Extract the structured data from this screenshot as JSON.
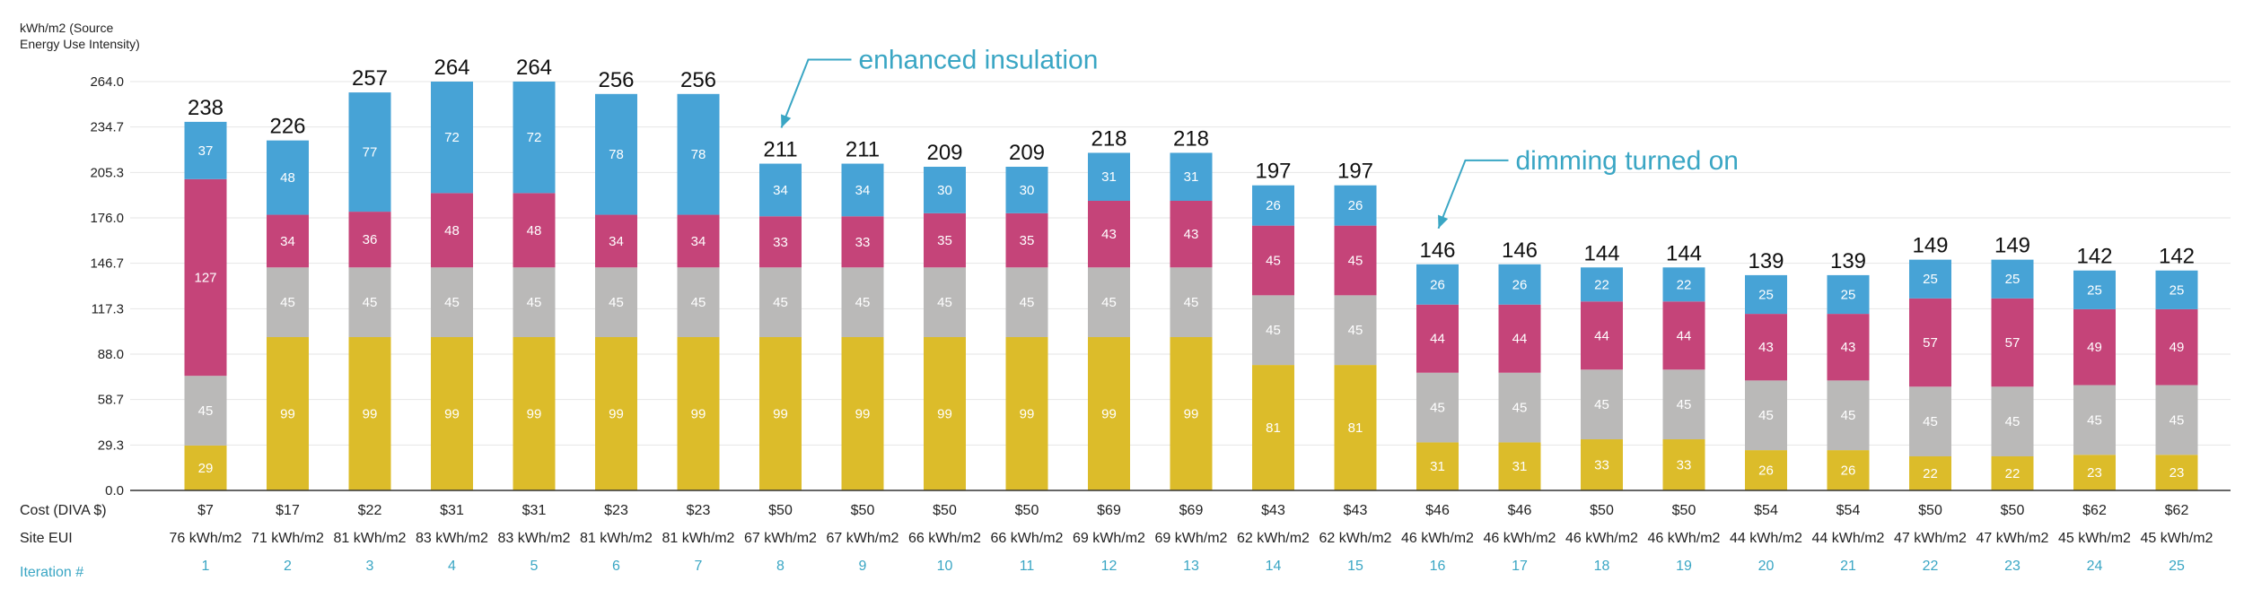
{
  "chart_data": {
    "type": "bar",
    "stacked": true,
    "ylabel": "kWh/m2 (Source Energy Use Intensity)",
    "ylabel_lines": [
      "kWh/m2 (Source",
      "Energy Use Intensity)"
    ],
    "ylim": [
      0,
      264
    ],
    "yticks": [
      "264.0",
      "234.7",
      "205.3",
      "176.0",
      "146.7",
      "117.3",
      "88.0",
      "58.7",
      "29.3",
      "0.0"
    ],
    "categories": [
      "1",
      "2",
      "3",
      "4",
      "5",
      "6",
      "7",
      "8",
      "9",
      "10",
      "11",
      "12",
      "13",
      "14",
      "15",
      "16",
      "17",
      "18",
      "19",
      "20",
      "21",
      "22",
      "23",
      "24",
      "25"
    ],
    "series": [
      {
        "name": "yellow",
        "color": "#dcbc2a",
        "values": [
          29,
          99,
          99,
          99,
          99,
          99,
          99,
          99,
          99,
          99,
          99,
          99,
          99,
          81,
          81,
          31,
          31,
          33,
          33,
          26,
          26,
          22,
          22,
          23,
          23
        ]
      },
      {
        "name": "gray",
        "color": "#bab9b8",
        "values": [
          45,
          45,
          45,
          45,
          45,
          45,
          45,
          45,
          45,
          45,
          45,
          45,
          45,
          45,
          45,
          45,
          45,
          45,
          45,
          45,
          45,
          45,
          45,
          45,
          45
        ]
      },
      {
        "name": "magenta",
        "color": "#c54479",
        "values": [
          127,
          34,
          36,
          48,
          48,
          34,
          34,
          33,
          33,
          35,
          35,
          43,
          43,
          45,
          45,
          44,
          44,
          44,
          44,
          43,
          43,
          57,
          57,
          49,
          49
        ]
      },
      {
        "name": "blue",
        "color": "#47a3d6",
        "values": [
          37,
          48,
          77,
          72,
          72,
          78,
          78,
          34,
          34,
          30,
          30,
          31,
          31,
          26,
          26,
          26,
          26,
          22,
          22,
          25,
          25,
          25,
          25,
          25,
          25
        ]
      }
    ],
    "totals": [
      238,
      226,
      257,
      264,
      264,
      256,
      256,
      211,
      211,
      209,
      209,
      218,
      218,
      197,
      197,
      146,
      146,
      144,
      144,
      139,
      139,
      149,
      149,
      142,
      142
    ],
    "rows": [
      {
        "label": "Cost (DIVA $)",
        "values": [
          "$7",
          "$17",
          "$22",
          "$31",
          "$31",
          "$23",
          "$23",
          "$50",
          "$50",
          "$50",
          "$50",
          "$69",
          "$69",
          "$43",
          "$43",
          "$46",
          "$46",
          "$50",
          "$50",
          "$54",
          "$54",
          "$50",
          "$50",
          "$62",
          "$62"
        ]
      },
      {
        "label": "Site EUI",
        "values": [
          "76 kWh/m2",
          "71 kWh/m2",
          "81 kWh/m2",
          "83 kWh/m2",
          "83 kWh/m2",
          "81 kWh/m2",
          "81 kWh/m2",
          "67 kWh/m2",
          "67 kWh/m2",
          "66 kWh/m2",
          "66 kWh/m2",
          "69 kWh/m2",
          "69 kWh/m2",
          "62 kWh/m2",
          "62 kWh/m2",
          "46 kWh/m2",
          "46 kWh/m2",
          "46 kWh/m2",
          "46 kWh/m2",
          "44 kWh/m2",
          "44 kWh/m2",
          "47 kWh/m2",
          "47 kWh/m2",
          "45 kWh/m2",
          "45 kWh/m2"
        ]
      }
    ],
    "iteration_label": "Iteration #",
    "annotations": [
      {
        "text": "enhanced insulation",
        "bar": 8
      },
      {
        "text": "dimming turned on",
        "bar": 16
      }
    ],
    "colors": {
      "annotation": "#3aa6c4",
      "grid": "#e6e6e6",
      "axis": "#333333"
    }
  }
}
